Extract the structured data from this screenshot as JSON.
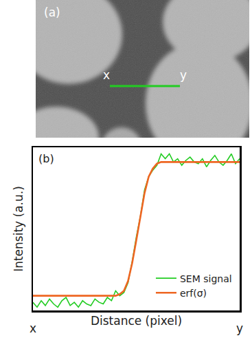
{
  "panel_a": {
    "label": "(a)",
    "line_start_label": "x",
    "line_end_label": "y",
    "line_color": "#22cc22"
  },
  "chart_data": {
    "type": "line",
    "panel_label": "(b)",
    "x_label": "Distance (pixel)",
    "y_label": "Intensity (a.u.)",
    "annotations": [
      {
        "text": "x",
        "x": 0
      },
      {
        "text": "y",
        "x": 50
      }
    ],
    "xlim": [
      0,
      50
    ],
    "ylim": [
      0,
      1
    ],
    "tick_labels": false,
    "grid": false,
    "legend": "lower right",
    "series": [
      {
        "name": "SEM signal",
        "color": "#22cc22",
        "line_style": "solid",
        "x": [
          0,
          1,
          2,
          3,
          4,
          5,
          6,
          7,
          8,
          9,
          10,
          11,
          12,
          13,
          14,
          15,
          16,
          17,
          18,
          19,
          20,
          21,
          22,
          23,
          24,
          25,
          26,
          27,
          28,
          29,
          30,
          31,
          32,
          33,
          34,
          35,
          36,
          37,
          38,
          39,
          40,
          41,
          42,
          43,
          44,
          45,
          46,
          47,
          48,
          49,
          50
        ],
        "values": [
          0.05,
          0.02,
          0.06,
          0.03,
          0.07,
          0.04,
          0.02,
          0.06,
          0.08,
          0.03,
          0.05,
          0.02,
          0.06,
          0.04,
          0.03,
          0.07,
          0.05,
          0.04,
          0.08,
          0.06,
          0.12,
          0.09,
          0.11,
          0.17,
          0.3,
          0.45,
          0.58,
          0.74,
          0.82,
          0.86,
          0.89,
          0.96,
          0.93,
          0.96,
          0.91,
          0.93,
          0.89,
          0.92,
          0.94,
          0.91,
          0.9,
          0.93,
          0.88,
          0.92,
          0.95,
          0.91,
          0.89,
          0.92,
          0.96,
          0.9,
          0.93
        ]
      },
      {
        "name": "erf(σ)",
        "color": "#ee6622",
        "line_style": "solid",
        "x": [
          0,
          20,
          21,
          22,
          23,
          24,
          25,
          26,
          27,
          28,
          29,
          30,
          31,
          32,
          50
        ],
        "values": [
          0.09,
          0.09,
          0.1,
          0.12,
          0.18,
          0.29,
          0.43,
          0.58,
          0.72,
          0.82,
          0.87,
          0.9,
          0.91,
          0.91,
          0.91
        ]
      }
    ]
  }
}
